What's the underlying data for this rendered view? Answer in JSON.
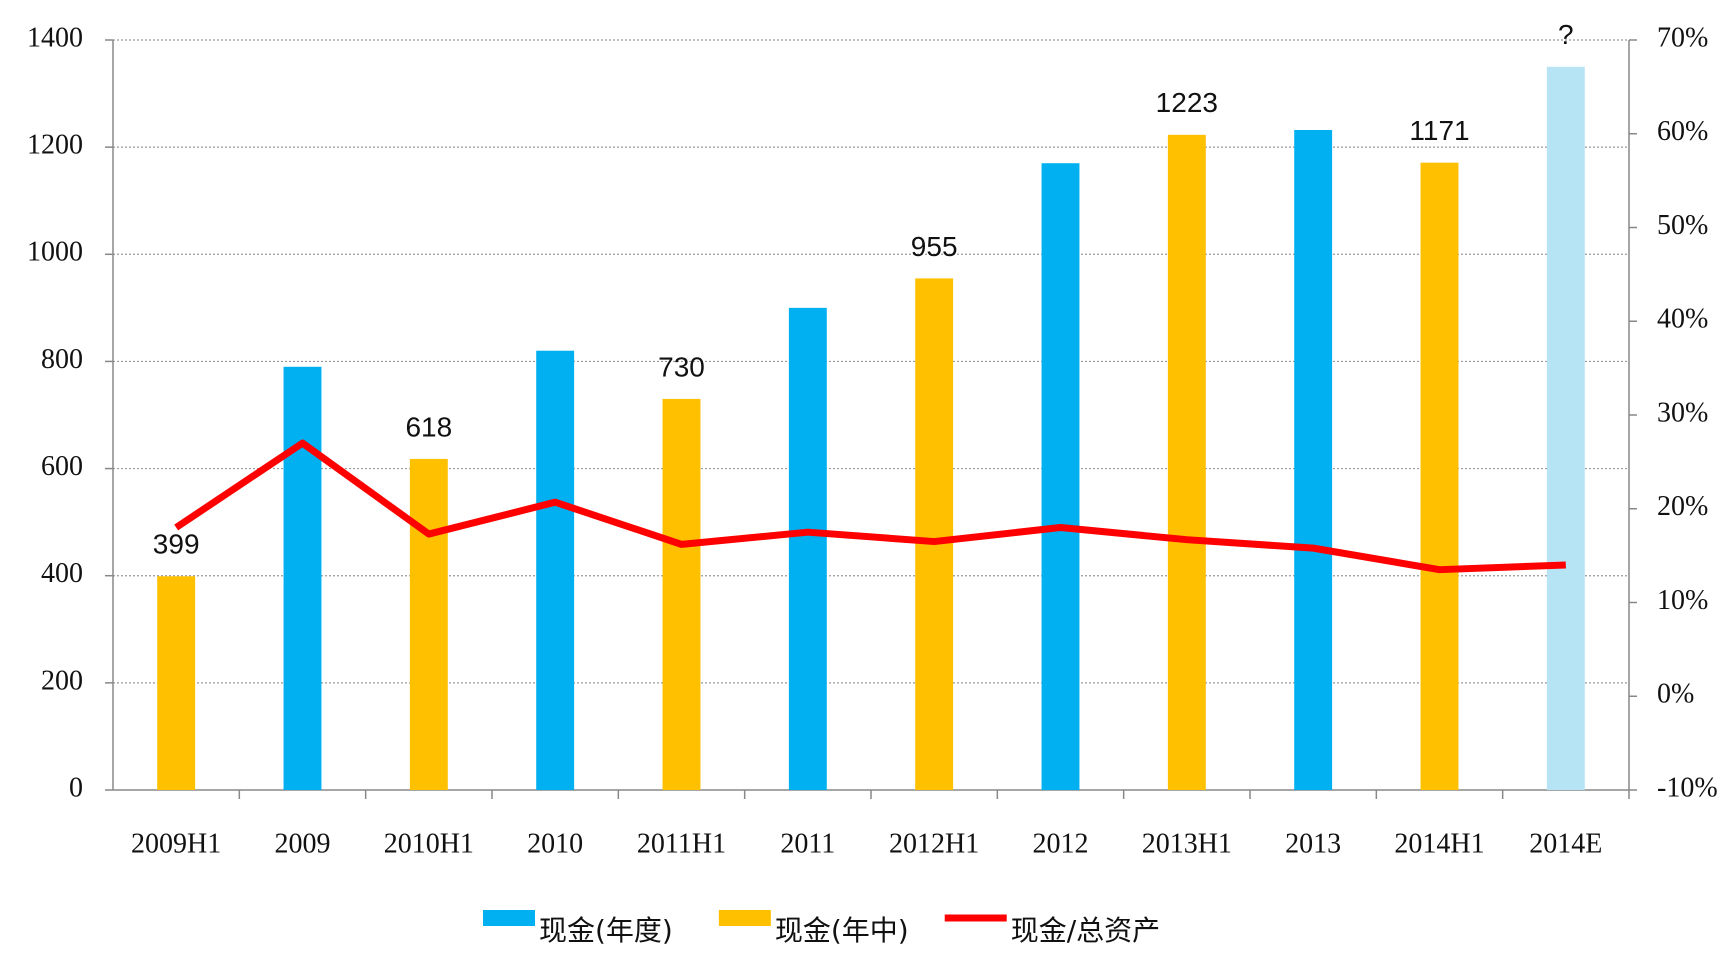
{
  "chart_data": {
    "type": "bar_line",
    "categories": [
      "2009H1",
      "2009",
      "2010H1",
      "2010",
      "2011H1",
      "2011",
      "2012H1",
      "2012",
      "2013H1",
      "2013",
      "2014H1",
      "2014E"
    ],
    "series": [
      {
        "name": "现金(年度)",
        "type": "bar",
        "color": "#00b0f0",
        "point_colors": [
          null,
          null,
          null,
          null,
          null,
          null,
          null,
          null,
          null,
          null,
          null,
          "#b7e4f5"
        ],
        "values": [
          null,
          790,
          null,
          820,
          null,
          900,
          null,
          1170,
          null,
          1232,
          null,
          1350
        ],
        "value_labels": [
          null,
          null,
          null,
          null,
          null,
          null,
          null,
          null,
          null,
          null,
          null,
          "?"
        ]
      },
      {
        "name": "现金(年中)",
        "type": "bar",
        "color": "#ffc000",
        "values": [
          399,
          null,
          618,
          null,
          730,
          null,
          955,
          null,
          1223,
          null,
          1171,
          null
        ],
        "value_labels": [
          "399",
          null,
          "618",
          null,
          "730",
          null,
          "955",
          null,
          "1223",
          null,
          "1171",
          null
        ]
      },
      {
        "name": "现金/总资产",
        "type": "line",
        "axis": "y2",
        "color": "#ff0000",
        "values": [
          18,
          27,
          17.3,
          20.7,
          16.2,
          17.5,
          16.5,
          18,
          16.7,
          15.8,
          13.5,
          14
        ]
      }
    ],
    "ylim": [
      0,
      1400
    ],
    "yticks": [
      0,
      200,
      400,
      600,
      800,
      1000,
      1200,
      1400
    ],
    "y2lim": [
      -10,
      70
    ],
    "y2ticks": [
      {
        "value": -10,
        "label": "-10%"
      },
      {
        "value": 0,
        "label": "0%"
      },
      {
        "value": 10,
        "label": "10%"
      },
      {
        "value": 20,
        "label": "20%"
      },
      {
        "value": 30,
        "label": "30%"
      },
      {
        "value": 40,
        "label": "40%"
      },
      {
        "value": 50,
        "label": "50%"
      },
      {
        "value": 60,
        "label": "60%"
      },
      {
        "value": 70,
        "label": "70%"
      }
    ],
    "grid": true,
    "legend": "bottom"
  }
}
